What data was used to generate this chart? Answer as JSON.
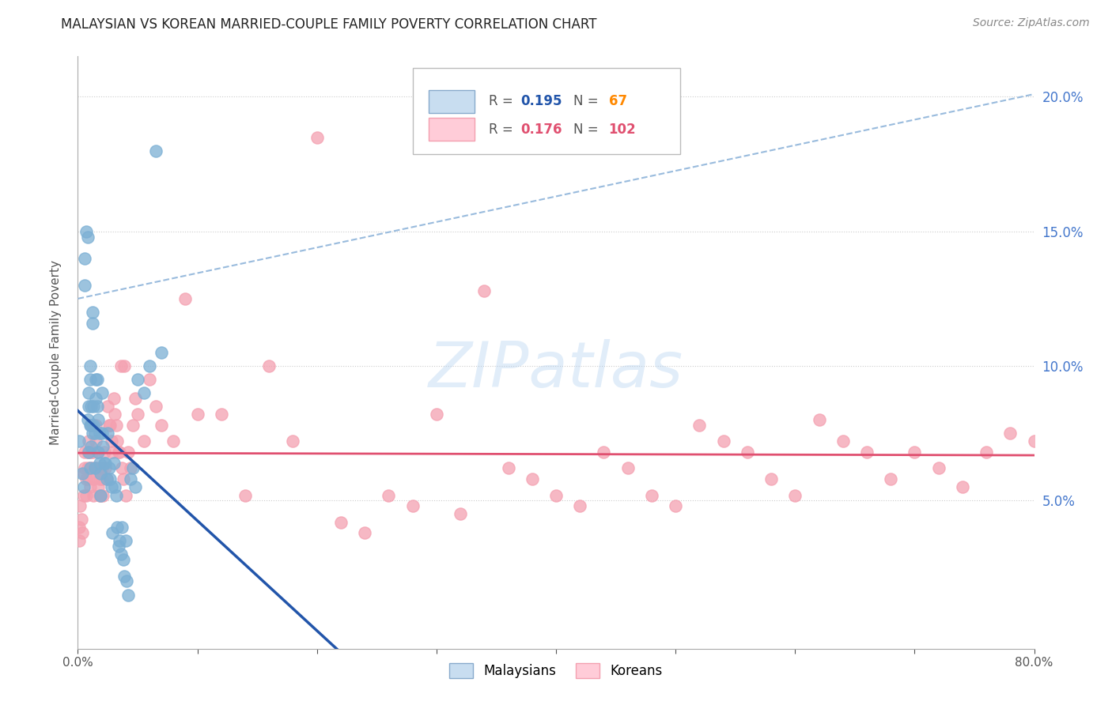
{
  "title": "MALAYSIAN VS KOREAN MARRIED-COUPLE FAMILY POVERTY CORRELATION CHART",
  "source": "Source: ZipAtlas.com",
  "ylabel": "Married-Couple Family Poverty",
  "xlim": [
    0,
    0.8
  ],
  "ylim": [
    -0.005,
    0.215
  ],
  "xtick_positions": [
    0.0,
    0.1,
    0.2,
    0.3,
    0.4,
    0.5,
    0.6,
    0.7,
    0.8
  ],
  "xticklabels": [
    "0.0%",
    "",
    "",
    "",
    "",
    "",
    "",
    "",
    "80.0%"
  ],
  "ytick_positions": [
    0.05,
    0.1,
    0.15,
    0.2
  ],
  "ytick_right_labels": [
    "5.0%",
    "10.0%",
    "15.0%",
    "20.0%"
  ],
  "malaysian_color": "#7BAFD4",
  "malaysian_line_color": "#2255AA",
  "korean_color": "#F4A0B0",
  "korean_line_color": "#E05070",
  "dash_line_color": "#99BBDD",
  "background_color": "#FFFFFF",
  "watermark": "ZIPatlas",
  "legend_r1": "R = 0.195",
  "legend_n1": "N =  67",
  "legend_r2": "R = 0.176",
  "legend_n2": "N = 102",
  "legend_r_color": "#2255AA",
  "legend_n_color": "#FF8800",
  "legend_r2_color": "#E05070",
  "legend_n2_color": "#E05070",
  "malaysian_data_x": [
    0.001,
    0.004,
    0.005,
    0.006,
    0.006,
    0.007,
    0.008,
    0.008,
    0.009,
    0.009,
    0.009,
    0.01,
    0.01,
    0.01,
    0.01,
    0.011,
    0.011,
    0.011,
    0.012,
    0.012,
    0.012,
    0.013,
    0.013,
    0.014,
    0.014,
    0.015,
    0.015,
    0.016,
    0.016,
    0.017,
    0.017,
    0.018,
    0.018,
    0.019,
    0.019,
    0.02,
    0.02,
    0.021,
    0.022,
    0.023,
    0.024,
    0.025,
    0.026,
    0.027,
    0.028,
    0.029,
    0.03,
    0.031,
    0.032,
    0.033,
    0.034,
    0.035,
    0.036,
    0.037,
    0.038,
    0.039,
    0.04,
    0.041,
    0.042,
    0.044,
    0.046,
    0.048,
    0.05,
    0.055,
    0.06,
    0.065,
    0.07
  ],
  "malaysian_data_y": [
    0.072,
    0.06,
    0.055,
    0.14,
    0.13,
    0.15,
    0.148,
    0.08,
    0.085,
    0.09,
    0.068,
    0.1,
    0.095,
    0.078,
    0.062,
    0.085,
    0.078,
    0.07,
    0.12,
    0.116,
    0.075,
    0.085,
    0.078,
    0.075,
    0.062,
    0.095,
    0.088,
    0.095,
    0.085,
    0.08,
    0.068,
    0.075,
    0.064,
    0.06,
    0.052,
    0.09,
    0.075,
    0.07,
    0.064,
    0.064,
    0.058,
    0.075,
    0.062,
    0.058,
    0.055,
    0.038,
    0.064,
    0.055,
    0.052,
    0.04,
    0.033,
    0.035,
    0.03,
    0.04,
    0.028,
    0.022,
    0.035,
    0.02,
    0.015,
    0.058,
    0.062,
    0.055,
    0.095,
    0.09,
    0.1,
    0.18,
    0.105
  ],
  "korean_data_x": [
    0.001,
    0.001,
    0.002,
    0.003,
    0.004,
    0.005,
    0.005,
    0.006,
    0.006,
    0.007,
    0.007,
    0.008,
    0.008,
    0.009,
    0.009,
    0.009,
    0.01,
    0.01,
    0.011,
    0.011,
    0.012,
    0.012,
    0.013,
    0.013,
    0.014,
    0.015,
    0.015,
    0.016,
    0.017,
    0.017,
    0.018,
    0.018,
    0.019,
    0.02,
    0.02,
    0.021,
    0.022,
    0.023,
    0.024,
    0.025,
    0.026,
    0.027,
    0.028,
    0.029,
    0.03,
    0.031,
    0.032,
    0.033,
    0.034,
    0.035,
    0.036,
    0.037,
    0.038,
    0.039,
    0.04,
    0.042,
    0.044,
    0.046,
    0.048,
    0.05,
    0.055,
    0.06,
    0.065,
    0.07,
    0.08,
    0.09,
    0.1,
    0.12,
    0.14,
    0.16,
    0.18,
    0.2,
    0.22,
    0.24,
    0.26,
    0.28,
    0.3,
    0.32,
    0.34,
    0.36,
    0.38,
    0.4,
    0.42,
    0.44,
    0.46,
    0.48,
    0.5,
    0.52,
    0.54,
    0.56,
    0.58,
    0.6,
    0.62,
    0.64,
    0.66,
    0.68,
    0.7,
    0.72,
    0.74,
    0.76,
    0.78,
    0.8
  ],
  "korean_data_y": [
    0.04,
    0.035,
    0.048,
    0.043,
    0.038,
    0.06,
    0.052,
    0.068,
    0.062,
    0.058,
    0.052,
    0.068,
    0.062,
    0.072,
    0.068,
    0.058,
    0.062,
    0.055,
    0.078,
    0.068,
    0.068,
    0.062,
    0.058,
    0.052,
    0.062,
    0.078,
    0.072,
    0.068,
    0.062,
    0.055,
    0.058,
    0.052,
    0.052,
    0.062,
    0.058,
    0.052,
    0.068,
    0.062,
    0.058,
    0.085,
    0.078,
    0.078,
    0.072,
    0.068,
    0.088,
    0.082,
    0.078,
    0.072,
    0.068,
    0.068,
    0.1,
    0.062,
    0.058,
    0.1,
    0.052,
    0.068,
    0.062,
    0.078,
    0.088,
    0.082,
    0.072,
    0.095,
    0.085,
    0.078,
    0.072,
    0.125,
    0.082,
    0.082,
    0.052,
    0.1,
    0.072,
    0.185,
    0.042,
    0.038,
    0.052,
    0.048,
    0.082,
    0.045,
    0.128,
    0.062,
    0.058,
    0.052,
    0.048,
    0.068,
    0.062,
    0.052,
    0.048,
    0.078,
    0.072,
    0.068,
    0.058,
    0.052,
    0.08,
    0.072,
    0.068,
    0.058,
    0.068,
    0.062,
    0.055,
    0.068,
    0.075,
    0.072
  ]
}
